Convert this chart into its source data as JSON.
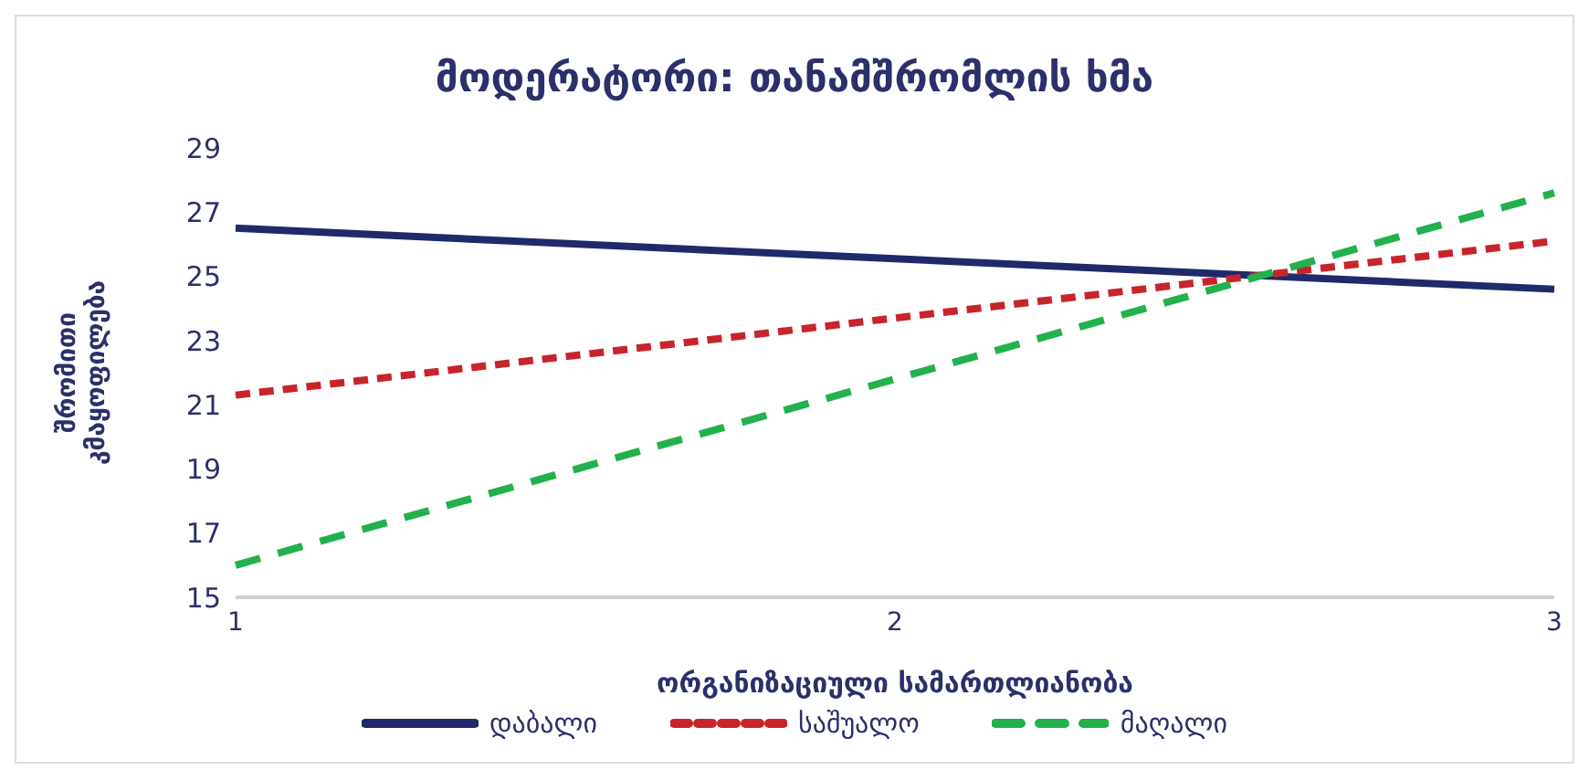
{
  "chart_data": {
    "type": "line",
    "title": "მოდერატორი: თანამშრომლის ხმა",
    "xlabel": "ორგანიზაციული სამართლიანობა",
    "ylabel": "შრომითი კმაყოფილება",
    "categories": [
      "1",
      "2",
      "3"
    ],
    "series": [
      {
        "name": "დაბალი",
        "color": "#1f2a6b",
        "line_style": "solid",
        "values": [
          26.5,
          25.55,
          24.6
        ]
      },
      {
        "name": "საშუალო",
        "color": "#c8242b",
        "line_style": "dotted",
        "values": [
          21.3,
          23.7,
          26.1
        ]
      },
      {
        "name": "მაღალი",
        "color": "#22b14c",
        "line_style": "dashed",
        "values": [
          16.0,
          21.8,
          27.6
        ]
      }
    ],
    "ylim": [
      15,
      29
    ],
    "yticks": [
      15,
      17,
      19,
      21,
      23,
      25,
      27,
      29
    ],
    "grid": false,
    "legend": "bottom",
    "marker": "none"
  }
}
